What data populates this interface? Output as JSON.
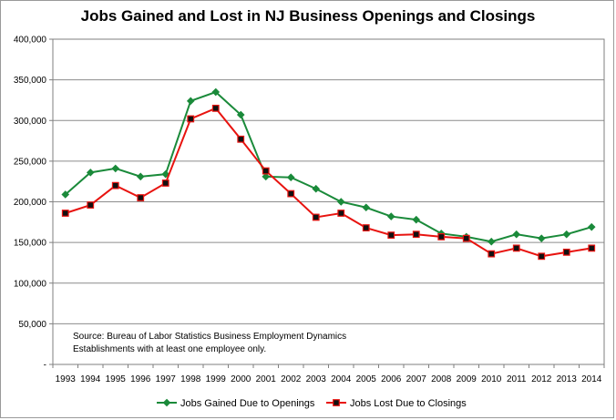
{
  "chart_data": {
    "type": "line",
    "title": "Jobs Gained and Lost in NJ Business Openings and Closings",
    "xlabel": "",
    "ylabel": "",
    "x": [
      "1993",
      "1994",
      "1995",
      "1996",
      "1997",
      "1998",
      "1999",
      "2000",
      "2001",
      "2002",
      "2003",
      "2004",
      "2005",
      "2006",
      "2007",
      "2008",
      "2009",
      "2010",
      "2011",
      "2012",
      "2013",
      "2014"
    ],
    "ylim": [
      0,
      400000
    ],
    "y_ticks": [
      0,
      50000,
      100000,
      150000,
      200000,
      250000,
      300000,
      350000,
      400000
    ],
    "y_tick_labels": [
      "-",
      "50,000",
      "100,000",
      "150,000",
      "200,000",
      "250,000",
      "300,000",
      "350,000",
      "400,000"
    ],
    "grid": "horizontal",
    "legend_position": "bottom",
    "series": [
      {
        "name": "Jobs Gained Due to Openings",
        "color": "#1a8a3a",
        "marker": "diamond",
        "values": [
          209000,
          236000,
          241000,
          231000,
          234000,
          324000,
          335000,
          307000,
          231000,
          230000,
          216000,
          200000,
          193000,
          182000,
          178000,
          161000,
          157000,
          151000,
          160000,
          155000,
          160000,
          169000
        ]
      },
      {
        "name": "Jobs Lost Due to Closings",
        "color": "#e8130f",
        "marker": "square",
        "values": [
          186000,
          196000,
          220000,
          205000,
          223000,
          302000,
          315000,
          277000,
          238000,
          210000,
          181000,
          186000,
          168000,
          159000,
          160000,
          157000,
          155000,
          136000,
          143000,
          133000,
          138000,
          143000
        ]
      }
    ],
    "annotations": [
      "Source:  Bureau of Labor Statistics Business Employment Dynamics",
      "Establishments with at least one employee only."
    ]
  }
}
